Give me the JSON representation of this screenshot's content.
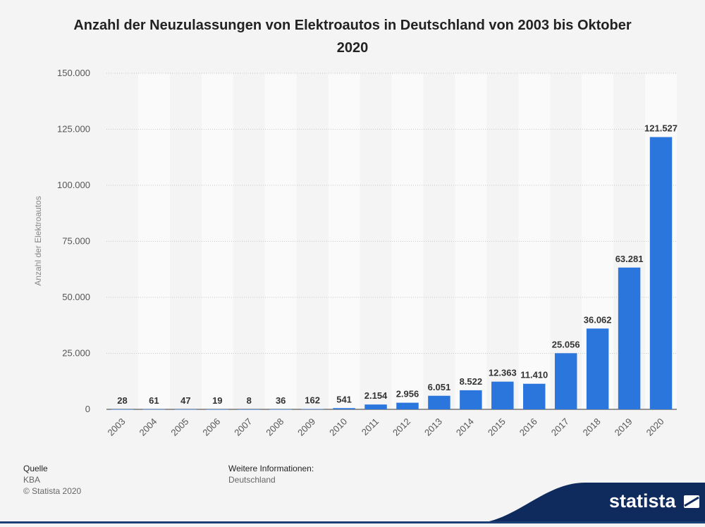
{
  "chart_data": {
    "type": "bar",
    "title": "Anzahl der Neuzulassungen von Elektroautos in Deutschland von 2003 bis Oktober 2020",
    "ylabel": "Anzahl der Elektroautos",
    "categories": [
      "2003",
      "2004",
      "2005",
      "2006",
      "2007",
      "2008",
      "2009",
      "2010",
      "2011",
      "2012",
      "2013",
      "2014",
      "2015",
      "2016",
      "2017",
      "2018",
      "2019",
      "2020"
    ],
    "values": [
      28,
      61,
      47,
      19,
      8,
      36,
      162,
      541,
      2154,
      2956,
      6051,
      8522,
      12363,
      11410,
      25056,
      36062,
      63281,
      121527
    ],
    "value_labels": [
      "28",
      "61",
      "47",
      "19",
      "8",
      "36",
      "162",
      "541",
      "2.154",
      "2.956",
      "6.051",
      "8.522",
      "12.363",
      "11.410",
      "25.056",
      "36.062",
      "63.281",
      "121.527"
    ],
    "ylim": [
      0,
      150000
    ],
    "yticks": [
      0,
      25000,
      50000,
      75000,
      100000,
      125000,
      150000
    ],
    "ytick_labels": [
      "0",
      "25.000",
      "50.000",
      "75.000",
      "100.000",
      "125.000",
      "150.000"
    ],
    "grid": true,
    "bar_color": "#2a76dd"
  },
  "footer": {
    "source_heading": "Quelle",
    "source_value": "KBA",
    "copyright": "© Statista 2020",
    "info_heading": "Weitere Informationen:",
    "info_value": "Deutschland"
  },
  "brand": {
    "name": "statista",
    "color": "#0f2a5c"
  }
}
